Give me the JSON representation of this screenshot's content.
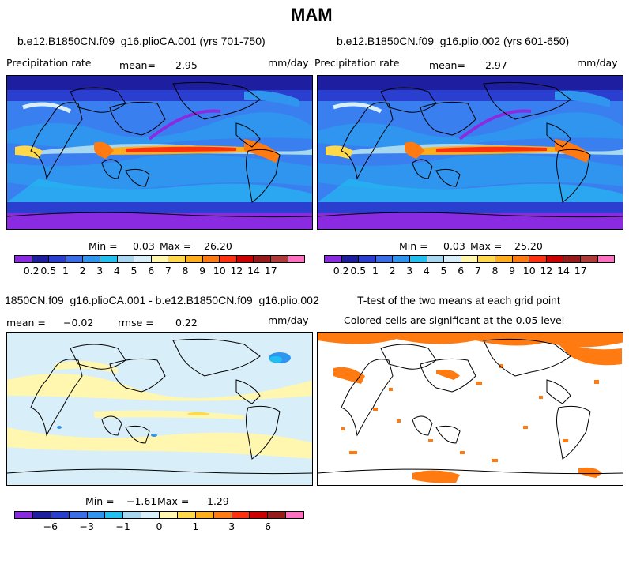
{
  "page_title": "MAM",
  "panels": [
    {
      "subtitle": "b.e12.B1850CN.f09_g16.plioCA.001 (yrs 701-750)",
      "field_label": "Precipitation rate",
      "mean_label": "mean=",
      "mean_value": "2.95",
      "units": "mm/day",
      "min_label": "Min =",
      "min_value": "0.03",
      "max_label": "Max =",
      "max_value": "26.20"
    },
    {
      "subtitle": "b.e12.B1850CN.f09_g16.plio.002 (yrs 601-650)",
      "field_label": "Precipitation rate",
      "mean_label": "mean=",
      "mean_value": "2.97",
      "units": "mm/day",
      "min_label": "Min =",
      "min_value": "0.03",
      "max_label": "Max =",
      "max_value": "25.20"
    },
    {
      "subtitle": "1850CN.f09_g16.plioCA.001 - b.e12.B1850CN.f09_g16.plio.002",
      "mean_label": "mean =",
      "mean_value": "−0.02",
      "rmse_label": "rmse =",
      "rmse_value": "0.22",
      "units": "mm/day",
      "min_label": "Min =",
      "min_value": "−1.61",
      "max_label": "Max =",
      "max_value": "1.29"
    },
    {
      "subtitle": "T-test of the two means at each grid point",
      "note": "Colored cells are significant at the 0.05 level"
    }
  ],
  "colorbar_abs": {
    "colors": [
      "#8a2be2",
      "#1e1ea0",
      "#2a3fd0",
      "#3a6ee8",
      "#2f95ef",
      "#22c0f0",
      "#a8d8f0",
      "#d8eef8",
      "#fff7b0",
      "#ffd94a",
      "#ffad1a",
      "#ff7a10",
      "#ff3010",
      "#cc0000",
      "#991a1a",
      "#b03a3a",
      "#ff70c0"
    ],
    "ticks": [
      "0.2",
      "0.5",
      "1",
      "2",
      "3",
      "4",
      "5",
      "6",
      "7",
      "8",
      "9",
      "10",
      "12",
      "14",
      "17"
    ]
  },
  "colorbar_diff": {
    "colors": [
      "#8a2be2",
      "#1e1ea0",
      "#2a3fd0",
      "#3a6ee8",
      "#2f95ef",
      "#22c0f0",
      "#a8d8f0",
      "#d8eef8",
      "#fff7b0",
      "#ffd94a",
      "#ffad1a",
      "#ff7a10",
      "#ff3010",
      "#cc0000",
      "#991a1a",
      "#ff70c0"
    ],
    "ticks": [
      "−6",
      "−3",
      "−1",
      "0",
      "1",
      "3",
      "6"
    ]
  },
  "colors": {
    "ocean_abs": "#3a7ff0",
    "diff_bg": "#d8eef8",
    "signif": "#ff7a10"
  }
}
